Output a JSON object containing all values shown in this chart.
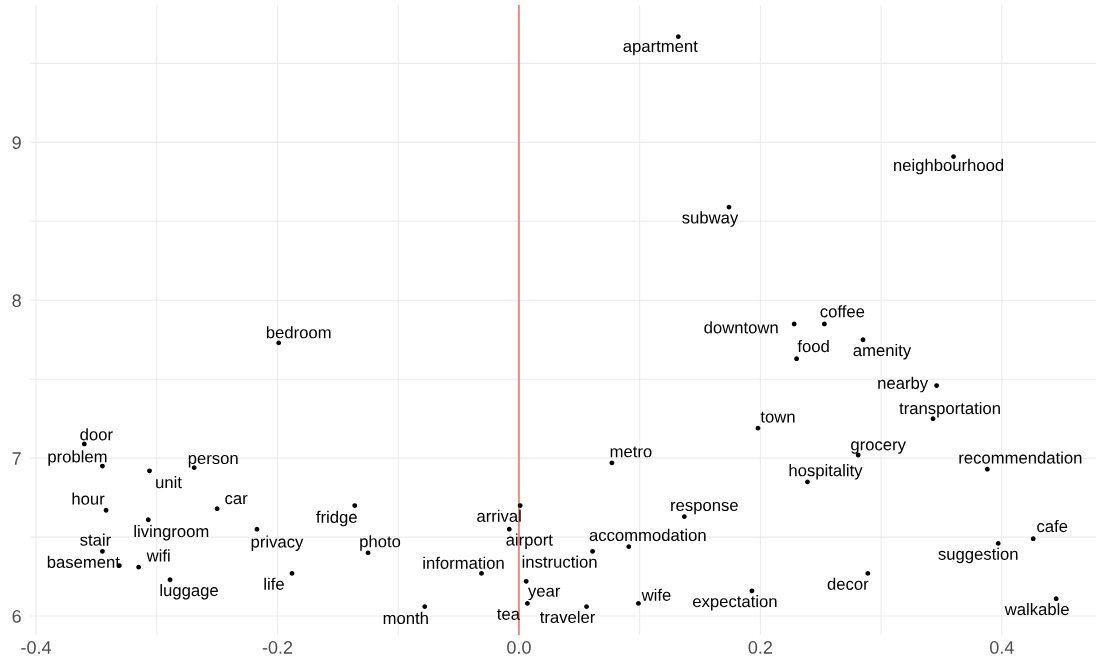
{
  "chart_data": {
    "type": "scatter",
    "color": "#000000",
    "marker": "circle",
    "grid": true,
    "xlim": [
      -0.405,
      0.478
    ],
    "ylim": [
      5.88,
      9.87
    ],
    "xticks": [
      -0.4,
      {
        "value": -0.3,
        "label": null
      },
      -0.2,
      {
        "value": -0.1,
        "label": null
      },
      {
        "value": 0,
        "label": "0.0"
      },
      {
        "value": 0.1,
        "label": null
      },
      0.2,
      {
        "value": 0.3,
        "label": null
      },
      0.4
    ],
    "yticks": [
      6,
      {
        "value": 6.5,
        "label": null
      },
      7,
      {
        "value": 7.5,
        "label": null
      },
      8,
      {
        "value": 8.5,
        "label": null
      },
      9,
      {
        "value": 9.5,
        "label": null
      }
    ],
    "ref_lines": [
      {
        "axis": "x",
        "value": 0,
        "color": "#f8766d"
      }
    ],
    "x": [
      0.132,
      0.36,
      0.174,
      -0.199,
      0.228,
      0.253,
      0.23,
      0.285,
      0.346,
      0.343,
      0.198,
      0.077,
      0.281,
      0.388,
      0.239,
      -0.36,
      -0.345,
      -0.306,
      -0.269,
      -0.342,
      -0.25,
      -0.307,
      -0.217,
      -0.136,
      -0.125,
      -0.345,
      -0.331,
      -0.315,
      -0.289,
      -0.188,
      -0.031,
      -0.078,
      0.001,
      -0.008,
      0.091,
      0.061,
      0.137,
      0.006,
      0.007,
      0.056,
      0.099,
      0.193,
      0.289,
      0.397,
      0.426,
      0.445
    ],
    "values": [
      9.67,
      8.91,
      8.59,
      7.73,
      7.85,
      7.85,
      7.63,
      7.75,
      7.46,
      7.25,
      7.19,
      6.97,
      7.02,
      6.93,
      6.85,
      7.09,
      6.95,
      6.92,
      6.94,
      6.67,
      6.68,
      6.61,
      6.55,
      6.7,
      6.4,
      6.41,
      6.32,
      6.31,
      6.23,
      6.27,
      6.27,
      6.06,
      6.7,
      6.55,
      6.44,
      6.41,
      6.63,
      6.22,
      6.08,
      6.06,
      6.08,
      6.16,
      6.27,
      6.46,
      6.49,
      6.11
    ],
    "value_labels": [
      "apartment",
      "neighbourhood",
      "subway",
      "bedroom",
      "downtown",
      "coffee",
      "food",
      "amenity",
      "nearby",
      "transportation",
      "town",
      "metro",
      "grocery",
      "recommendation",
      "hospitality",
      "door",
      "problem",
      "unit",
      "person",
      "hour",
      "car",
      "livingroom",
      "privacy",
      "fridge",
      "photo",
      "stair",
      "basement",
      "wifi",
      "luggage",
      "life",
      "information",
      "month",
      "arrival",
      "airport",
      "accommodation",
      "instruction",
      "response",
      "year",
      "tea",
      "traveler",
      "wife",
      "expectation",
      "decor",
      "suggestion",
      "cafe",
      "walkable"
    ]
  }
}
